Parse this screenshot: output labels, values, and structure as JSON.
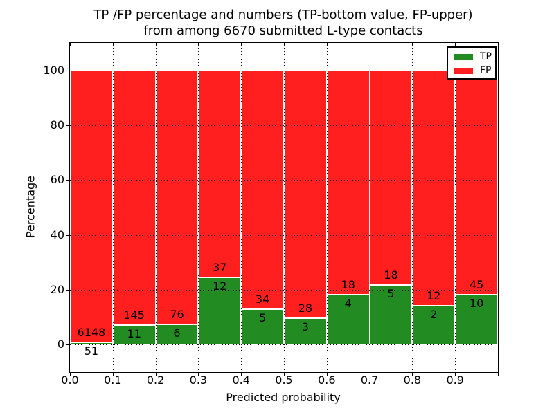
{
  "title": {
    "line1": "TP /FP percentage and numbers (TP-bottom value, FP-upper)",
    "line2": "from among 6670 submitted L-type contacts"
  },
  "axes": {
    "xlabel": "Predicted probability",
    "ylabel": "Percentage",
    "yticks": [
      0,
      20,
      40,
      60,
      80,
      100
    ],
    "xtick_labels": [
      "0.0",
      "0.1",
      "0.2",
      "0.3",
      "0.4",
      "0.5",
      "0.6",
      "0.7",
      "0.8",
      "0.9"
    ]
  },
  "legend": {
    "entries": [
      {
        "label": "TP",
        "color": "#228b22"
      },
      {
        "label": "FP",
        "color": "#ff1f1f"
      }
    ]
  },
  "colors": {
    "tp": "#228b22",
    "fp": "#ff1f1f",
    "grid": "#000000",
    "axis": "#000000",
    "background": "#ffffff"
  },
  "chart_data": {
    "type": "bar",
    "stacked": true,
    "normalized": "percent",
    "title": "TP /FP percentage and numbers (TP-bottom value, FP-upper) from among 6670 submitted L-type contacts",
    "xlabel": "Predicted probability",
    "ylabel": "Percentage",
    "xlim": [
      0,
      1
    ],
    "ylim": [
      -10,
      110
    ],
    "grid": "dotted",
    "legend_position": "upper right",
    "total_contacts": 6670,
    "bins": [
      {
        "range": [
          0.0,
          0.1
        ],
        "tp": 51,
        "fp": 6148
      },
      {
        "range": [
          0.1,
          0.2
        ],
        "tp": 11,
        "fp": 145
      },
      {
        "range": [
          0.2,
          0.3
        ],
        "tp": 6,
        "fp": 76
      },
      {
        "range": [
          0.3,
          0.4
        ],
        "tp": 12,
        "fp": 37
      },
      {
        "range": [
          0.4,
          0.5
        ],
        "tp": 5,
        "fp": 34
      },
      {
        "range": [
          0.5,
          0.6
        ],
        "tp": 3,
        "fp": 28
      },
      {
        "range": [
          0.6,
          0.7
        ],
        "tp": 4,
        "fp": 18
      },
      {
        "range": [
          0.7,
          0.8
        ],
        "tp": 5,
        "fp": 18
      },
      {
        "range": [
          0.8,
          0.9
        ],
        "tp": 2,
        "fp": 12
      },
      {
        "range": [
          0.9,
          1.0
        ],
        "tp": 10,
        "fp": 45
      }
    ],
    "tp_percent": [
      0.82,
      7.05,
      7.32,
      24.49,
      12.82,
      9.68,
      18.18,
      21.74,
      14.29,
      18.18
    ]
  }
}
